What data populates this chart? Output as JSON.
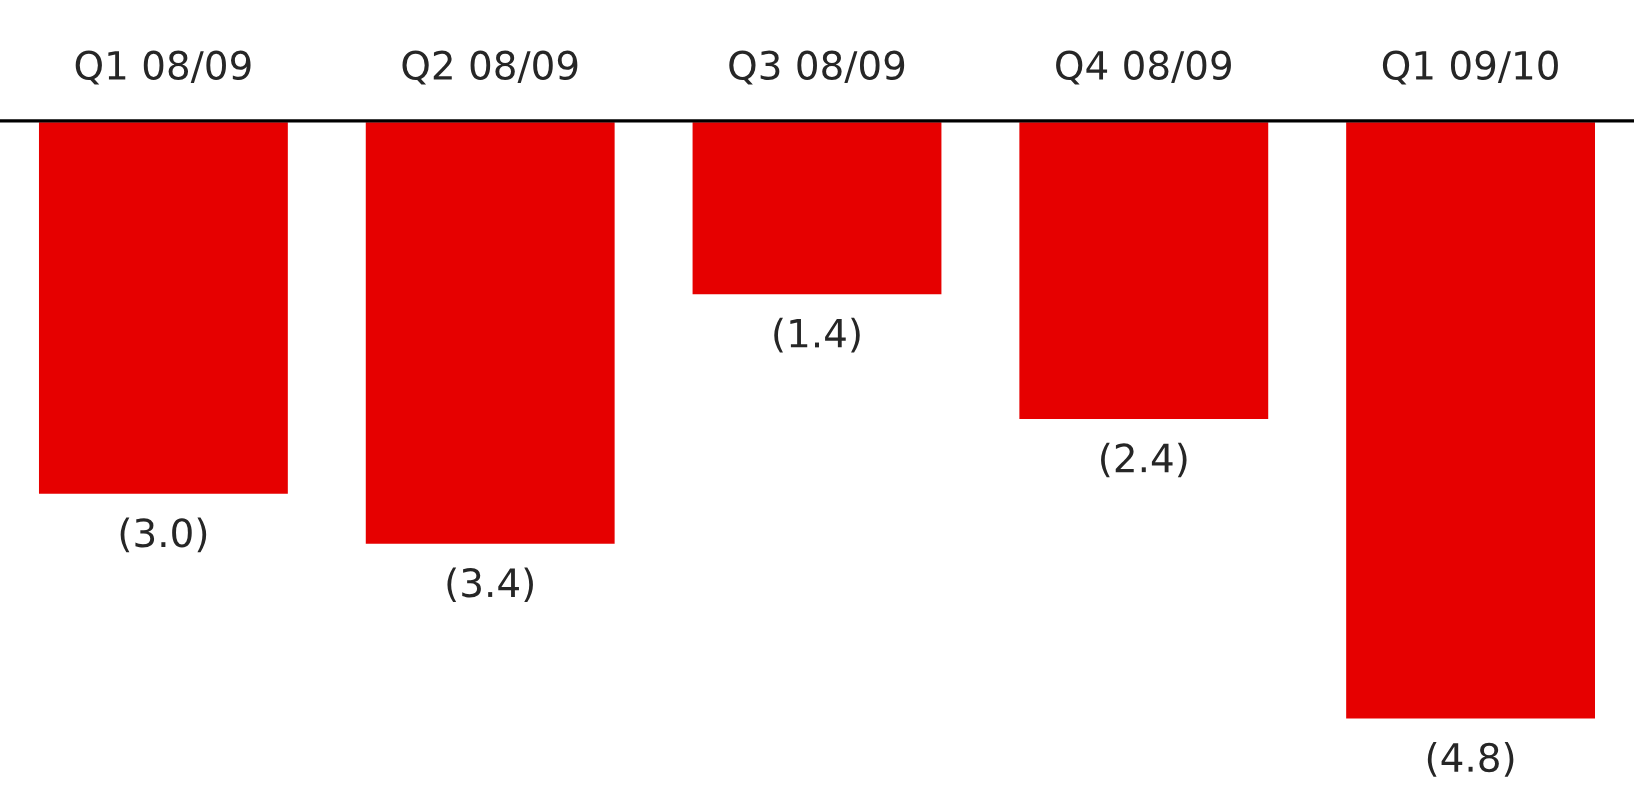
{
  "chart_data": {
    "type": "bar",
    "categories": [
      "Q1 08/09",
      "Q2 08/09",
      "Q3 08/09",
      "Q4 08/09",
      "Q1 09/10"
    ],
    "values": [
      -3.0,
      -3.4,
      -1.4,
      -2.4,
      -4.8
    ],
    "value_labels": [
      "(3.0)",
      "(3.4)",
      "(1.4)",
      "(2.4)",
      "(4.8)"
    ],
    "color": "#e60000",
    "grid": false,
    "legend": false
  }
}
